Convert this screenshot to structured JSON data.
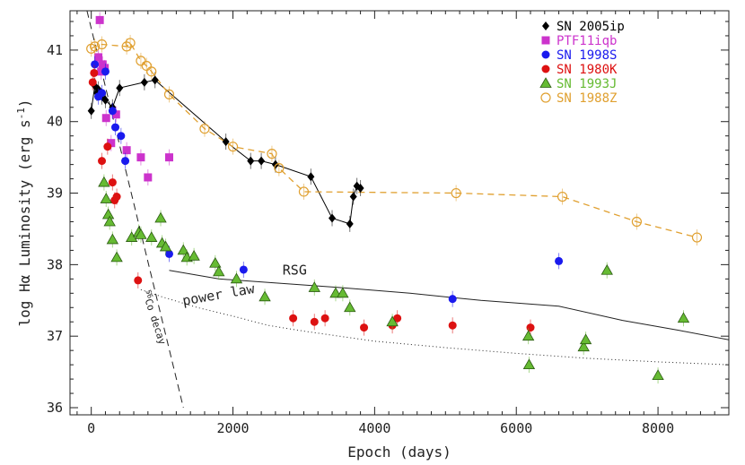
{
  "chart_data": {
    "type": "scatter",
    "xlabel": "Epoch (days)",
    "ylabel": "log Hα Luminosity (erg s⁻¹)",
    "xlim": [
      -300,
      9000
    ],
    "ylim": [
      35.9,
      41.55
    ],
    "x_ticks": [
      0,
      2000,
      4000,
      6000,
      8000
    ],
    "y_ticks": [
      36,
      37,
      38,
      39,
      40,
      41
    ],
    "x_tick_labels": [
      "0",
      "2000",
      "4000",
      "6000",
      "8000"
    ],
    "y_tick_labels": [
      "36",
      "37",
      "38",
      "39",
      "40",
      "41"
    ],
    "legend_position": "top-right",
    "annotations": {
      "rsg": "RSG",
      "power_law": "power law",
      "co_decay_sup": "56",
      "co_decay": "Co decay"
    },
    "series": [
      {
        "name": "SN 2005ip",
        "color": "#000000",
        "marker": "diamond",
        "connected": true,
        "points": [
          [
            0,
            40.15
          ],
          [
            50,
            40.5
          ],
          [
            80,
            40.4
          ],
          [
            100,
            40.45
          ],
          [
            150,
            40.35
          ],
          [
            200,
            40.3
          ],
          [
            300,
            40.2
          ],
          [
            400,
            40.47
          ],
          [
            750,
            40.55
          ],
          [
            900,
            40.58
          ],
          [
            1900,
            39.72
          ],
          [
            2250,
            39.45
          ],
          [
            2400,
            39.45
          ],
          [
            2600,
            39.4
          ],
          [
            3100,
            39.23
          ],
          [
            3400,
            38.65
          ],
          [
            3650,
            38.57
          ],
          [
            3700,
            38.95
          ],
          [
            3750,
            39.1
          ],
          [
            3800,
            39.07
          ]
        ]
      },
      {
        "name": "PTF11iqb",
        "color": "#cc33cc",
        "marker": "square",
        "connected": false,
        "points": [
          [
            100,
            40.9
          ],
          [
            120,
            41.42
          ],
          [
            140,
            40.7
          ],
          [
            160,
            40.8
          ],
          [
            190,
            40.75
          ],
          [
            210,
            40.05
          ],
          [
            280,
            39.7
          ],
          [
            350,
            40.1
          ],
          [
            500,
            39.6
          ],
          [
            700,
            39.5
          ],
          [
            800,
            39.22
          ],
          [
            1100,
            39.5
          ]
        ]
      },
      {
        "name": "SN 1998S",
        "color": "#1a1aee",
        "marker": "circle",
        "connected": false,
        "points": [
          [
            50,
            40.8
          ],
          [
            100,
            40.35
          ],
          [
            150,
            40.4
          ],
          [
            200,
            40.7
          ],
          [
            300,
            40.15
          ],
          [
            340,
            39.92
          ],
          [
            420,
            39.8
          ],
          [
            480,
            39.45
          ],
          [
            1100,
            38.15
          ],
          [
            2150,
            37.93
          ],
          [
            5100,
            37.52
          ],
          [
            6600,
            38.05
          ]
        ]
      },
      {
        "name": "SN 1980K",
        "color": "#dd1111",
        "marker": "circle",
        "connected": false,
        "points": [
          [
            20,
            40.55
          ],
          [
            40,
            40.68
          ],
          [
            150,
            39.45
          ],
          [
            230,
            39.65
          ],
          [
            300,
            39.15
          ],
          [
            330,
            38.9
          ],
          [
            360,
            38.95
          ],
          [
            660,
            37.78
          ],
          [
            2850,
            37.25
          ],
          [
            3150,
            37.2
          ],
          [
            3300,
            37.25
          ],
          [
            3850,
            37.12
          ],
          [
            4250,
            37.15
          ],
          [
            4320,
            37.25
          ],
          [
            5100,
            37.15
          ],
          [
            6200,
            37.12
          ]
        ]
      },
      {
        "name": "SN 1993J",
        "color": "#66bb33",
        "marker": "triangle",
        "connected": false,
        "points": [
          [
            180,
            39.15
          ],
          [
            210,
            38.92
          ],
          [
            240,
            38.7
          ],
          [
            260,
            38.6
          ],
          [
            300,
            38.35
          ],
          [
            360,
            38.1
          ],
          [
            570,
            38.38
          ],
          [
            670,
            38.45
          ],
          [
            700,
            38.42
          ],
          [
            850,
            38.38
          ],
          [
            980,
            38.65
          ],
          [
            1000,
            38.3
          ],
          [
            1050,
            38.25
          ],
          [
            1300,
            38.2
          ],
          [
            1350,
            38.1
          ],
          [
            1450,
            38.12
          ],
          [
            1750,
            38.02
          ],
          [
            1800,
            37.9
          ],
          [
            2050,
            37.8
          ],
          [
            2450,
            37.55
          ],
          [
            3150,
            37.68
          ],
          [
            3450,
            37.6
          ],
          [
            3550,
            37.6
          ],
          [
            3650,
            37.4
          ],
          [
            4250,
            37.2
          ],
          [
            6170,
            37.0
          ],
          [
            6180,
            36.6
          ],
          [
            6950,
            36.85
          ],
          [
            6980,
            36.95
          ],
          [
            7280,
            37.92
          ],
          [
            8000,
            36.45
          ],
          [
            8360,
            37.25
          ]
        ]
      },
      {
        "name": "SN 1988Z",
        "color": "#e0a030",
        "marker": "open-circle",
        "connected": true,
        "points": [
          [
            0,
            41.02
          ],
          [
            50,
            41.05
          ],
          [
            150,
            41.08
          ],
          [
            500,
            41.05
          ],
          [
            550,
            41.1
          ],
          [
            700,
            40.85
          ],
          [
            780,
            40.78
          ],
          [
            850,
            40.7
          ],
          [
            1100,
            40.38
          ],
          [
            1600,
            39.9
          ],
          [
            2000,
            39.65
          ],
          [
            2550,
            39.55
          ],
          [
            2650,
            39.35
          ],
          [
            3000,
            39.02
          ],
          [
            5150,
            39.0
          ],
          [
            6650,
            38.95
          ],
          [
            7700,
            38.6
          ],
          [
            8550,
            38.38
          ]
        ]
      }
    ],
    "model_lines": [
      {
        "name": "RSG",
        "style": "solid",
        "points": [
          [
            1100,
            37.92
          ],
          [
            1800,
            37.8
          ],
          [
            2500,
            37.75
          ],
          [
            3500,
            37.68
          ],
          [
            4500,
            37.6
          ],
          [
            5500,
            37.5
          ],
          [
            6600,
            37.42
          ],
          [
            7500,
            37.22
          ],
          [
            8300,
            37.08
          ],
          [
            9000,
            36.95
          ]
        ]
      },
      {
        "name": "power law",
        "style": "dotted",
        "points": [
          [
            700,
            37.65
          ],
          [
            1000,
            37.55
          ],
          [
            1500,
            37.4
          ],
          [
            2000,
            37.28
          ],
          [
            2500,
            37.15
          ],
          [
            3000,
            37.07
          ],
          [
            4000,
            36.93
          ],
          [
            5000,
            36.84
          ],
          [
            6000,
            36.76
          ],
          [
            7000,
            36.69
          ],
          [
            8000,
            36.64
          ],
          [
            9000,
            36.6
          ]
        ]
      },
      {
        "name": "56Co decay",
        "style": "dashed",
        "points": [
          [
            -60,
            41.55
          ],
          [
            1300,
            36.0
          ]
        ]
      }
    ]
  }
}
